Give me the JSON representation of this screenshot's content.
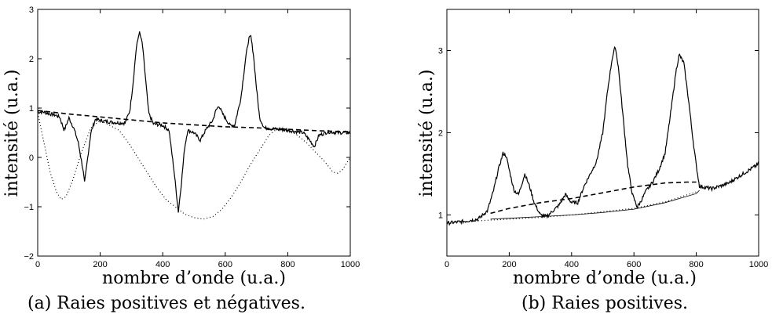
{
  "chart_data": [
    {
      "type": "line",
      "caption": "(a) Raies positives et négatives.",
      "xlabel": "nombre d’onde (u.a.)",
      "ylabel": "intensité (u.a.)",
      "xlim": [
        0,
        1000
      ],
      "ylim": [
        -2,
        3
      ],
      "xticks": [
        "0",
        "200",
        "400",
        "600",
        "800",
        "1000"
      ],
      "yticks": [
        "−2",
        "−1",
        "0",
        "1",
        "2",
        "3"
      ],
      "grid": false,
      "series": [
        {
          "style": "solid",
          "x": [
            0,
            20,
            40,
            55,
            70,
            85,
            100,
            115,
            130,
            145,
            150,
            160,
            170,
            185,
            200,
            230,
            260,
            280,
            295,
            305,
            315,
            325,
            335,
            345,
            355,
            370,
            400,
            420,
            435,
            445,
            450,
            460,
            470,
            480,
            500,
            520,
            540,
            560,
            570,
            580,
            590,
            600,
            615,
            630,
            650,
            665,
            675,
            682,
            690,
            700,
            710,
            725,
            750,
            800,
            850,
            870,
            885,
            900,
            930,
            960,
            1000
          ],
          "y": [
            0.92,
            0.92,
            0.88,
            0.86,
            0.82,
            0.55,
            0.8,
            0.6,
            0.3,
            -0.25,
            -0.52,
            0.0,
            0.5,
            0.78,
            0.75,
            0.72,
            0.7,
            0.7,
            0.95,
            1.5,
            2.2,
            2.55,
            2.3,
            1.6,
            0.9,
            0.68,
            0.65,
            0.55,
            -0.2,
            -0.8,
            -1.1,
            -0.5,
            0.2,
            0.55,
            0.5,
            0.35,
            0.58,
            0.75,
            0.95,
            1.05,
            0.9,
            0.8,
            0.65,
            0.65,
            1.2,
            2.0,
            2.4,
            2.45,
            2.1,
            1.4,
            0.8,
            0.6,
            0.58,
            0.55,
            0.5,
            0.35,
            0.22,
            0.45,
            0.52,
            0.5,
            0.5
          ]
        },
        {
          "style": "dashed",
          "x": [
            0,
            100,
            200,
            300,
            400,
            500,
            600,
            700,
            800,
            900,
            1000
          ],
          "y": [
            0.95,
            0.88,
            0.82,
            0.76,
            0.7,
            0.66,
            0.62,
            0.6,
            0.57,
            0.54,
            0.52
          ]
        },
        {
          "style": "dotted",
          "x": [
            0,
            20,
            40,
            60,
            75,
            90,
            110,
            140,
            170,
            200,
            230,
            260,
            290,
            320,
            350,
            380,
            410,
            440,
            470,
            500,
            530,
            560,
            590,
            620,
            650,
            680,
            710,
            740,
            770,
            800,
            830,
            860,
            890,
            920,
            945,
            960,
            975,
            990,
            1000
          ],
          "y": [
            0.9,
            0.3,
            -0.3,
            -0.7,
            -0.85,
            -0.8,
            -0.5,
            0.1,
            0.6,
            0.75,
            0.65,
            0.55,
            0.3,
            0.0,
            -0.3,
            -0.6,
            -0.85,
            -1.0,
            -1.15,
            -1.22,
            -1.25,
            -1.2,
            -1.05,
            -0.8,
            -0.5,
            -0.15,
            0.15,
            0.45,
            0.6,
            0.58,
            0.45,
            0.3,
            0.1,
            -0.1,
            -0.3,
            -0.32,
            -0.25,
            -0.1,
            0.0
          ]
        }
      ]
    },
    {
      "type": "line",
      "caption": "(b) Raies positives.",
      "xlabel": "nombre d’onde (u.a.)",
      "ylabel": "intensité (u.a.)",
      "xlim": [
        0,
        1000
      ],
      "ylim": [
        0.5,
        3.5
      ],
      "xticks": [
        "0",
        "200",
        "400",
        "600",
        "800",
        "1000"
      ],
      "yticks": [
        "1",
        "2",
        "3"
      ],
      "ytick_values": [
        1,
        2,
        3
      ],
      "grid": false,
      "series": [
        {
          "style": "solid",
          "x": [
            0,
            50,
            100,
            130,
            150,
            165,
            180,
            190,
            200,
            215,
            230,
            250,
            265,
            280,
            300,
            320,
            340,
            360,
            380,
            400,
            420,
            440,
            460,
            480,
            500,
            515,
            530,
            540,
            550,
            565,
            580,
            595,
            610,
            620,
            640,
            660,
            680,
            700,
            720,
            735,
            745,
            760,
            775,
            790,
            800,
            810,
            850,
            900,
            950,
            1000
          ],
          "y": [
            0.9,
            0.92,
            0.95,
            1.05,
            1.3,
            1.55,
            1.75,
            1.72,
            1.55,
            1.3,
            1.25,
            1.5,
            1.35,
            1.15,
            1.0,
            0.98,
            1.05,
            1.12,
            1.25,
            1.15,
            1.15,
            1.35,
            1.5,
            1.65,
            2.0,
            2.5,
            2.9,
            3.05,
            2.8,
            2.2,
            1.6,
            1.25,
            1.1,
            1.15,
            1.3,
            1.4,
            1.55,
            1.75,
            2.3,
            2.75,
            2.95,
            2.85,
            2.4,
            1.9,
            1.6,
            1.35,
            1.32,
            1.38,
            1.5,
            1.62
          ]
        },
        {
          "style": "dashed",
          "x": [
            140,
            200,
            300,
            400,
            500,
            600,
            700,
            770,
            800
          ],
          "y": [
            1.02,
            1.08,
            1.15,
            1.2,
            1.27,
            1.34,
            1.39,
            1.4,
            1.4
          ]
        },
        {
          "style": "dotted",
          "x": [
            0,
            100,
            200,
            300,
            400,
            500,
            600,
            700,
            800
          ],
          "y": [
            0.9,
            0.93,
            0.95,
            0.97,
            1.0,
            1.04,
            1.08,
            1.16,
            1.28
          ]
        },
        {
          "style": "thin",
          "x": [
            140,
            200,
            300,
            400,
            500,
            600,
            700,
            800,
            810
          ],
          "y": [
            0.95,
            0.96,
            0.98,
            1.0,
            1.03,
            1.07,
            1.15,
            1.26,
            1.3
          ]
        }
      ]
    }
  ]
}
